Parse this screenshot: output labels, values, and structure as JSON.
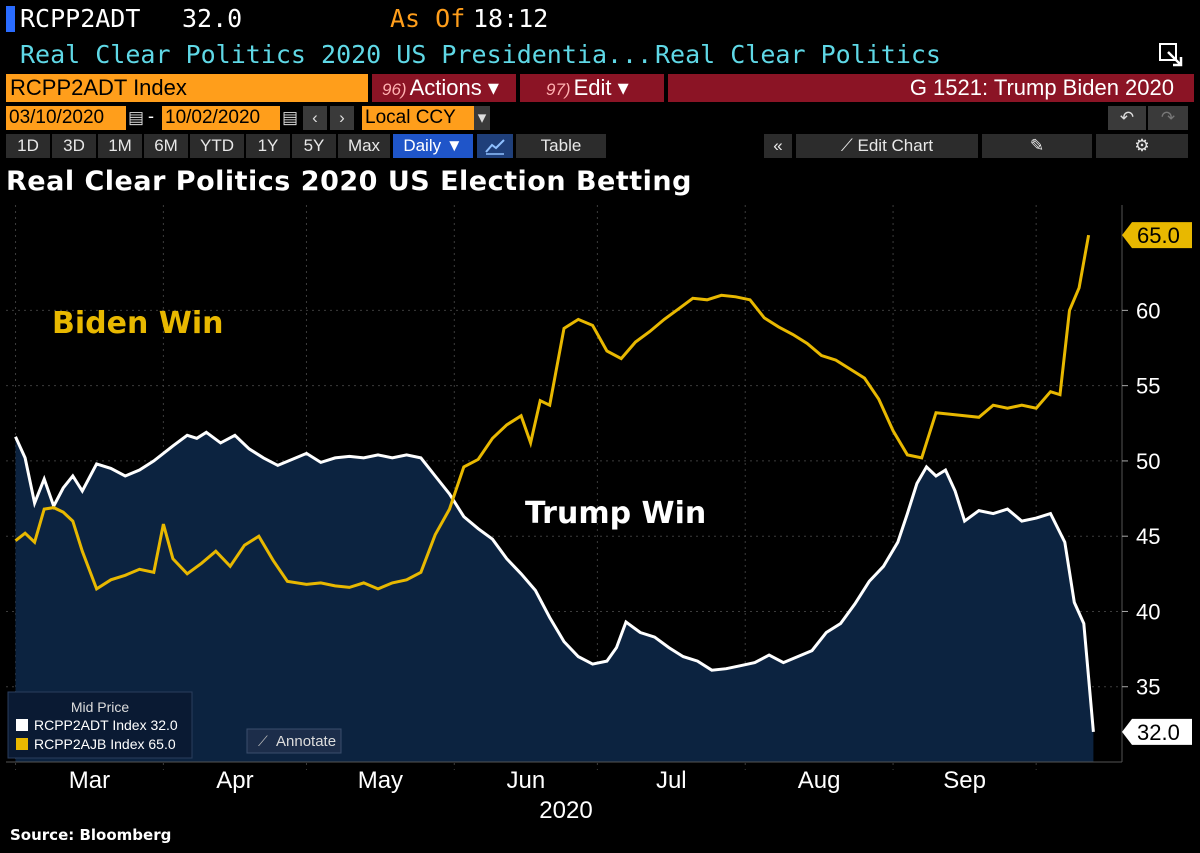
{
  "header": {
    "ticker": "RCPP2ADT",
    "price": "32.0",
    "as_of_label": "As Of",
    "time": "18:12",
    "description": "Real Clear Politics 2020 US Presidentia...",
    "source_name": "Real Clear Politics"
  },
  "toolbar": {
    "index_label": "RCPP2ADT Index",
    "actions_num": "96)",
    "actions_label": "Actions ▾",
    "edit_num": "97)",
    "edit_label": "Edit ▾",
    "gchart_label": "G 1521: Trump Biden 2020",
    "start_date": "03/10/2020",
    "end_date": "10/02/2020",
    "date_sep": "-",
    "currency": "Local CCY",
    "range_buttons": [
      "1D",
      "3D",
      "1M",
      "6M",
      "YTD",
      "1Y",
      "5Y",
      "Max"
    ],
    "frequency": "Daily ▼",
    "table_label": "Table",
    "collapse_label": "«",
    "edit_chart_label": "Edit Chart",
    "undo_icon": "undo-icon",
    "redo_icon": "redo-icon"
  },
  "colors": {
    "trump": "#ffffff",
    "biden": "#e8b800",
    "area": "#0c2340",
    "orange": "#ff9e1b",
    "red_bar": "#8b1425"
  },
  "chart_data": {
    "type": "line",
    "title": "Real Clear Politics 2020 US Election Betting",
    "ylim": [
      30,
      67
    ],
    "yticks": [
      35,
      40,
      45,
      50,
      55,
      60
    ],
    "x_month_labels": [
      "Mar",
      "Apr",
      "May",
      "Jun",
      "Jul",
      "Aug",
      "Sep"
    ],
    "x_year_label": "2020",
    "annotations": [
      "Biden Win",
      "Trump Win"
    ],
    "legend": {
      "title": "Mid Price",
      "entries": [
        "RCPP2ADT Index 32.0",
        "RCPP2AJB Index 65.0"
      ]
    },
    "annotate_button": "Annotate",
    "last_values": {
      "biden": "65.0",
      "trump": "32.0"
    },
    "series": [
      {
        "name": "RCPP2ADT Index",
        "color": "#ffffff",
        "values": [
          [
            "2020-03-01",
            51.6
          ],
          [
            "2020-03-03",
            50.2
          ],
          [
            "2020-03-05",
            47.2
          ],
          [
            "2020-03-07",
            48.8
          ],
          [
            "2020-03-09",
            47.0
          ],
          [
            "2020-03-11",
            48.2
          ],
          [
            "2020-03-13",
            49.0
          ],
          [
            "2020-03-15",
            48.0
          ],
          [
            "2020-03-18",
            49.8
          ],
          [
            "2020-03-21",
            49.5
          ],
          [
            "2020-03-24",
            49.0
          ],
          [
            "2020-03-27",
            49.4
          ],
          [
            "2020-03-30",
            50.0
          ],
          [
            "2020-04-03",
            51.0
          ],
          [
            "2020-04-06",
            51.7
          ],
          [
            "2020-04-08",
            51.5
          ],
          [
            "2020-04-10",
            51.9
          ],
          [
            "2020-04-13",
            51.2
          ],
          [
            "2020-04-16",
            51.7
          ],
          [
            "2020-04-19",
            50.8
          ],
          [
            "2020-04-22",
            50.2
          ],
          [
            "2020-04-25",
            49.7
          ],
          [
            "2020-04-28",
            50.1
          ],
          [
            "2020-05-01",
            50.5
          ],
          [
            "2020-05-04",
            49.9
          ],
          [
            "2020-05-07",
            50.2
          ],
          [
            "2020-05-10",
            50.3
          ],
          [
            "2020-05-13",
            50.2
          ],
          [
            "2020-05-16",
            50.4
          ],
          [
            "2020-05-19",
            50.2
          ],
          [
            "2020-05-22",
            50.4
          ],
          [
            "2020-05-25",
            50.2
          ],
          [
            "2020-05-28",
            49.0
          ],
          [
            "2020-05-31",
            47.8
          ],
          [
            "2020-06-03",
            46.3
          ],
          [
            "2020-06-06",
            45.5
          ],
          [
            "2020-06-09",
            44.8
          ],
          [
            "2020-06-12",
            43.5
          ],
          [
            "2020-06-15",
            42.5
          ],
          [
            "2020-06-18",
            41.4
          ],
          [
            "2020-06-21",
            39.6
          ],
          [
            "2020-06-24",
            38.0
          ],
          [
            "2020-06-27",
            37.0
          ],
          [
            "2020-06-30",
            36.5
          ],
          [
            "2020-07-03",
            36.7
          ],
          [
            "2020-07-05",
            37.6
          ],
          [
            "2020-07-07",
            39.3
          ],
          [
            "2020-07-10",
            38.6
          ],
          [
            "2020-07-13",
            38.3
          ],
          [
            "2020-07-16",
            37.6
          ],
          [
            "2020-07-19",
            37.0
          ],
          [
            "2020-07-22",
            36.7
          ],
          [
            "2020-07-25",
            36.1
          ],
          [
            "2020-07-28",
            36.2
          ],
          [
            "2020-07-31",
            36.4
          ],
          [
            "2020-08-03",
            36.6
          ],
          [
            "2020-08-06",
            37.1
          ],
          [
            "2020-08-09",
            36.6
          ],
          [
            "2020-08-12",
            37.0
          ],
          [
            "2020-08-15",
            37.4
          ],
          [
            "2020-08-18",
            38.6
          ],
          [
            "2020-08-21",
            39.2
          ],
          [
            "2020-08-24",
            40.5
          ],
          [
            "2020-08-27",
            42.0
          ],
          [
            "2020-08-30",
            43.0
          ],
          [
            "2020-09-02",
            44.6
          ],
          [
            "2020-09-04",
            46.5
          ],
          [
            "2020-09-06",
            48.5
          ],
          [
            "2020-09-08",
            49.6
          ],
          [
            "2020-09-10",
            49.0
          ],
          [
            "2020-09-12",
            49.4
          ],
          [
            "2020-09-14",
            48.0
          ],
          [
            "2020-09-16",
            46.0
          ],
          [
            "2020-09-19",
            46.7
          ],
          [
            "2020-09-22",
            46.5
          ],
          [
            "2020-09-25",
            46.8
          ],
          [
            "2020-09-28",
            46.0
          ],
          [
            "2020-10-01",
            46.2
          ],
          [
            "2020-10-04",
            46.5
          ],
          [
            "2020-10-07",
            44.6
          ],
          [
            "2020-10-09",
            40.6
          ],
          [
            "2020-10-11",
            39.2
          ],
          [
            "2020-10-13",
            32.0
          ]
        ]
      },
      {
        "name": "RCPP2AJB Index",
        "color": "#e8b800",
        "values": [
          [
            "2020-03-01",
            44.7
          ],
          [
            "2020-03-03",
            45.2
          ],
          [
            "2020-03-05",
            44.6
          ],
          [
            "2020-03-07",
            46.8
          ],
          [
            "2020-03-09",
            46.9
          ],
          [
            "2020-03-11",
            46.6
          ],
          [
            "2020-03-13",
            46.0
          ],
          [
            "2020-03-15",
            44.0
          ],
          [
            "2020-03-18",
            41.5
          ],
          [
            "2020-03-21",
            42.1
          ],
          [
            "2020-03-24",
            42.4
          ],
          [
            "2020-03-27",
            42.8
          ],
          [
            "2020-03-30",
            42.6
          ],
          [
            "2020-04-01",
            45.8
          ],
          [
            "2020-04-03",
            43.5
          ],
          [
            "2020-04-06",
            42.5
          ],
          [
            "2020-04-09",
            43.2
          ],
          [
            "2020-04-12",
            44.0
          ],
          [
            "2020-04-15",
            43.0
          ],
          [
            "2020-04-18",
            44.4
          ],
          [
            "2020-04-21",
            45.0
          ],
          [
            "2020-04-24",
            43.4
          ],
          [
            "2020-04-27",
            42.0
          ],
          [
            "2020-05-01",
            41.8
          ],
          [
            "2020-05-04",
            41.9
          ],
          [
            "2020-05-07",
            41.7
          ],
          [
            "2020-05-10",
            41.6
          ],
          [
            "2020-05-13",
            41.9
          ],
          [
            "2020-05-16",
            41.5
          ],
          [
            "2020-05-19",
            41.9
          ],
          [
            "2020-05-22",
            42.1
          ],
          [
            "2020-05-25",
            42.6
          ],
          [
            "2020-05-28",
            45.1
          ],
          [
            "2020-05-31",
            46.8
          ],
          [
            "2020-06-03",
            49.6
          ],
          [
            "2020-06-06",
            50.1
          ],
          [
            "2020-06-09",
            51.5
          ],
          [
            "2020-06-12",
            52.4
          ],
          [
            "2020-06-15",
            53.0
          ],
          [
            "2020-06-17",
            51.2
          ],
          [
            "2020-06-19",
            54.0
          ],
          [
            "2020-06-21",
            53.7
          ],
          [
            "2020-06-24",
            58.8
          ],
          [
            "2020-06-27",
            59.4
          ],
          [
            "2020-06-30",
            59.0
          ],
          [
            "2020-07-03",
            57.3
          ],
          [
            "2020-07-06",
            56.8
          ],
          [
            "2020-07-09",
            57.9
          ],
          [
            "2020-07-12",
            58.6
          ],
          [
            "2020-07-15",
            59.4
          ],
          [
            "2020-07-18",
            60.1
          ],
          [
            "2020-07-21",
            60.8
          ],
          [
            "2020-07-24",
            60.7
          ],
          [
            "2020-07-27",
            61.0
          ],
          [
            "2020-07-30",
            60.9
          ],
          [
            "2020-08-02",
            60.7
          ],
          [
            "2020-08-05",
            59.5
          ],
          [
            "2020-08-08",
            58.9
          ],
          [
            "2020-08-11",
            58.4
          ],
          [
            "2020-08-14",
            57.8
          ],
          [
            "2020-08-17",
            57.0
          ],
          [
            "2020-08-20",
            56.7
          ],
          [
            "2020-08-23",
            56.1
          ],
          [
            "2020-08-26",
            55.5
          ],
          [
            "2020-08-29",
            54.1
          ],
          [
            "2020-09-01",
            52.0
          ],
          [
            "2020-09-04",
            50.4
          ],
          [
            "2020-09-07",
            50.2
          ],
          [
            "2020-09-10",
            53.2
          ],
          [
            "2020-09-13",
            53.1
          ],
          [
            "2020-09-16",
            53.0
          ],
          [
            "2020-09-19",
            52.9
          ],
          [
            "2020-09-22",
            53.7
          ],
          [
            "2020-09-25",
            53.5
          ],
          [
            "2020-09-28",
            53.7
          ],
          [
            "2020-10-01",
            53.5
          ],
          [
            "2020-10-04",
            54.6
          ],
          [
            "2020-10-06",
            54.4
          ],
          [
            "2020-10-08",
            60.0
          ],
          [
            "2020-10-10",
            61.5
          ],
          [
            "2020-10-12",
            65.0
          ]
        ]
      }
    ]
  },
  "source_text": "Source: Bloomberg"
}
